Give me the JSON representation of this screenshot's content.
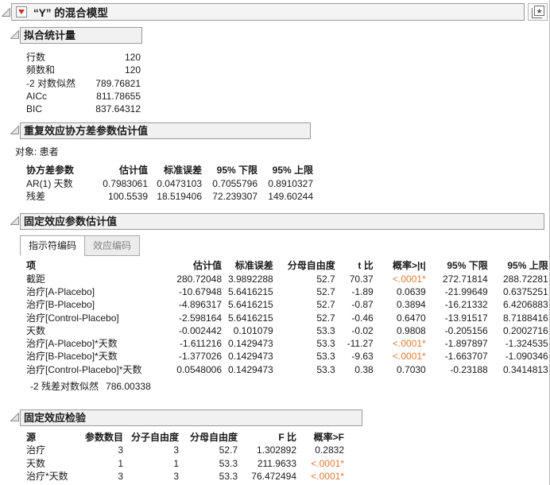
{
  "colors": {
    "significant": "#e27b35",
    "menu_red": "#d4301f"
  },
  "window": {
    "title": "“Y” 的混合模型",
    "icons": {
      "menu": "red-triangle-menu",
      "collapse": "disclosure-triangle",
      "publish": "star-layers"
    }
  },
  "fit_stats": {
    "title": "拟合统计量",
    "rows": [
      [
        "行数",
        "120"
      ],
      [
        "频数和",
        "120"
      ],
      [
        "-2 对数似然",
        "789.76821"
      ],
      [
        "AICc",
        "811.78655"
      ],
      [
        "BIC",
        "837.64312"
      ]
    ]
  },
  "covariance": {
    "title": "重复效应协方差参数估计值",
    "subject": "对象: 患者",
    "headers": [
      "协方差参数",
      "估计值",
      "标准误差",
      "95% 下限",
      "95% 上限"
    ],
    "rows": [
      [
        "AR(1) 天数",
        "0.7983061",
        "0.0473103",
        "0.7055796",
        "0.8910327"
      ],
      [
        "残差",
        "100.5539",
        "18.519406",
        "72.239307",
        "149.60244"
      ]
    ]
  },
  "fixed_effects": {
    "title": "固定效应参数估计值",
    "tabs": [
      "指示符编码",
      "效应编码"
    ],
    "active_tab": "指示符编码",
    "headers": [
      "项",
      "估计值",
      "标准误差",
      "分母自由度",
      "t 比",
      "概率>|t|",
      "95% 下限",
      "95% 上限"
    ],
    "rows": [
      [
        "截距",
        "280.72048",
        "3.9892288",
        "52.7",
        "70.37",
        "<.0001*",
        "272.71814",
        "288.72281"
      ],
      [
        "治疗[A-Placebo]",
        "-10.67948",
        "5.6416215",
        "52.7",
        "-1.89",
        "0.0639",
        "-21.99649",
        "0.6375251"
      ],
      [
        "治疗[B-Placebo]",
        "-4.896317",
        "5.6416215",
        "52.7",
        "-0.87",
        "0.3894",
        "-16.21332",
        "6.4206883"
      ],
      [
        "治疗[Control-Placebo]",
        "-2.598164",
        "5.6416215",
        "52.7",
        "-0.46",
        "0.6470",
        "-13.91517",
        "8.7188416"
      ],
      [
        "天数",
        "-0.002442",
        "0.101079",
        "53.3",
        "-0.02",
        "0.9808",
        "-0.205156",
        "0.2002716"
      ],
      [
        "治疗[A-Placebo]*天数",
        "-1.611216",
        "0.1429473",
        "53.3",
        "-11.27",
        "<.0001*",
        "-1.897897",
        "-1.324535"
      ],
      [
        "治疗[B-Placebo]*天数",
        "-1.377026",
        "0.1429473",
        "53.3",
        "-9.63",
        "<.0001*",
        "-1.663707",
        "-1.090346"
      ],
      [
        "治疗[Control-Placebo]*天数",
        "0.0548006",
        "0.1429473",
        "53.3",
        "0.38",
        "0.7030",
        "-0.23188",
        "0.3414813"
      ]
    ],
    "footer": {
      "label": "-2 残差对数似然",
      "value": "786.00338"
    }
  },
  "fixed_tests": {
    "title": "固定效应检验",
    "headers": [
      "源",
      "参数数目",
      "分子自由度",
      "分母自由度",
      "F 比",
      "概率>F"
    ],
    "rows": [
      [
        "治疗",
        "3",
        "3",
        "52.7",
        "1.302892",
        "0.2832"
      ],
      [
        "天数",
        "1",
        "1",
        "53.3",
        "211.9633",
        "<.0001*"
      ],
      [
        "治疗*天数",
        "3",
        "3",
        "53.3",
        "76.472494",
        "<.0001*"
      ]
    ]
  }
}
